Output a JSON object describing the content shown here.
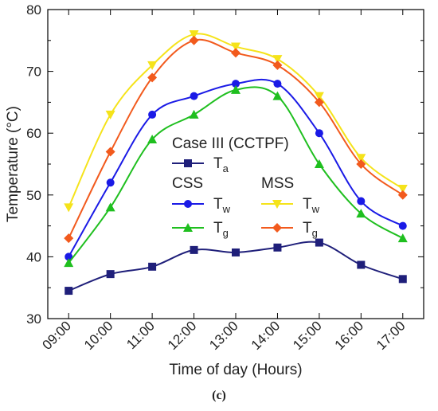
{
  "chart_data": {
    "type": "line",
    "xlabel": "Time of day (Hours)",
    "ylabel": "Temperature (°C)",
    "ylim": [
      30,
      80
    ],
    "y_ticks": [
      30,
      40,
      50,
      60,
      70,
      80
    ],
    "categories": [
      "09:00",
      "10:00",
      "11:00",
      "12:00",
      "13:00",
      "14:00",
      "15:00",
      "16:00",
      "17:00"
    ],
    "grid": false,
    "series": [
      {
        "key": "ta",
        "group": "Case III (CCTPF)",
        "name": "T",
        "sub": "a",
        "marker": "square",
        "color": "#1f1f7a",
        "values": [
          34.5,
          37.2,
          38.4,
          41.1,
          40.7,
          41.5,
          42.3,
          38.7,
          36.4
        ]
      },
      {
        "key": "css_tw",
        "group": "CSS",
        "name": "T",
        "sub": "w",
        "marker": "circle",
        "color": "#1a1ae6",
        "values": [
          40,
          52,
          63,
          66,
          68,
          68,
          60,
          49,
          45
        ]
      },
      {
        "key": "css_tg",
        "group": "CSS",
        "name": "T",
        "sub": "g",
        "marker": "triangle-up",
        "color": "#1fbf1f",
        "values": [
          39,
          48,
          59,
          63,
          67,
          66,
          55,
          47,
          43
        ]
      },
      {
        "key": "mss_tw",
        "group": "MSS",
        "name": "T",
        "sub": "w",
        "marker": "triangle-down",
        "color": "#f5e31a",
        "values": [
          48,
          63,
          71,
          76,
          74,
          72,
          66,
          56,
          51
        ]
      },
      {
        "key": "mss_tg",
        "group": "MSS",
        "name": "T",
        "sub": "g",
        "marker": "diamond",
        "color": "#f25a1d",
        "values": [
          43,
          57,
          69,
          75,
          73,
          71,
          65,
          55,
          50
        ]
      }
    ],
    "legend": {
      "placement": "center",
      "headers": [
        "Case III (CCTPF)",
        "CSS",
        "MSS"
      ]
    }
  },
  "panel_label": "(c)"
}
